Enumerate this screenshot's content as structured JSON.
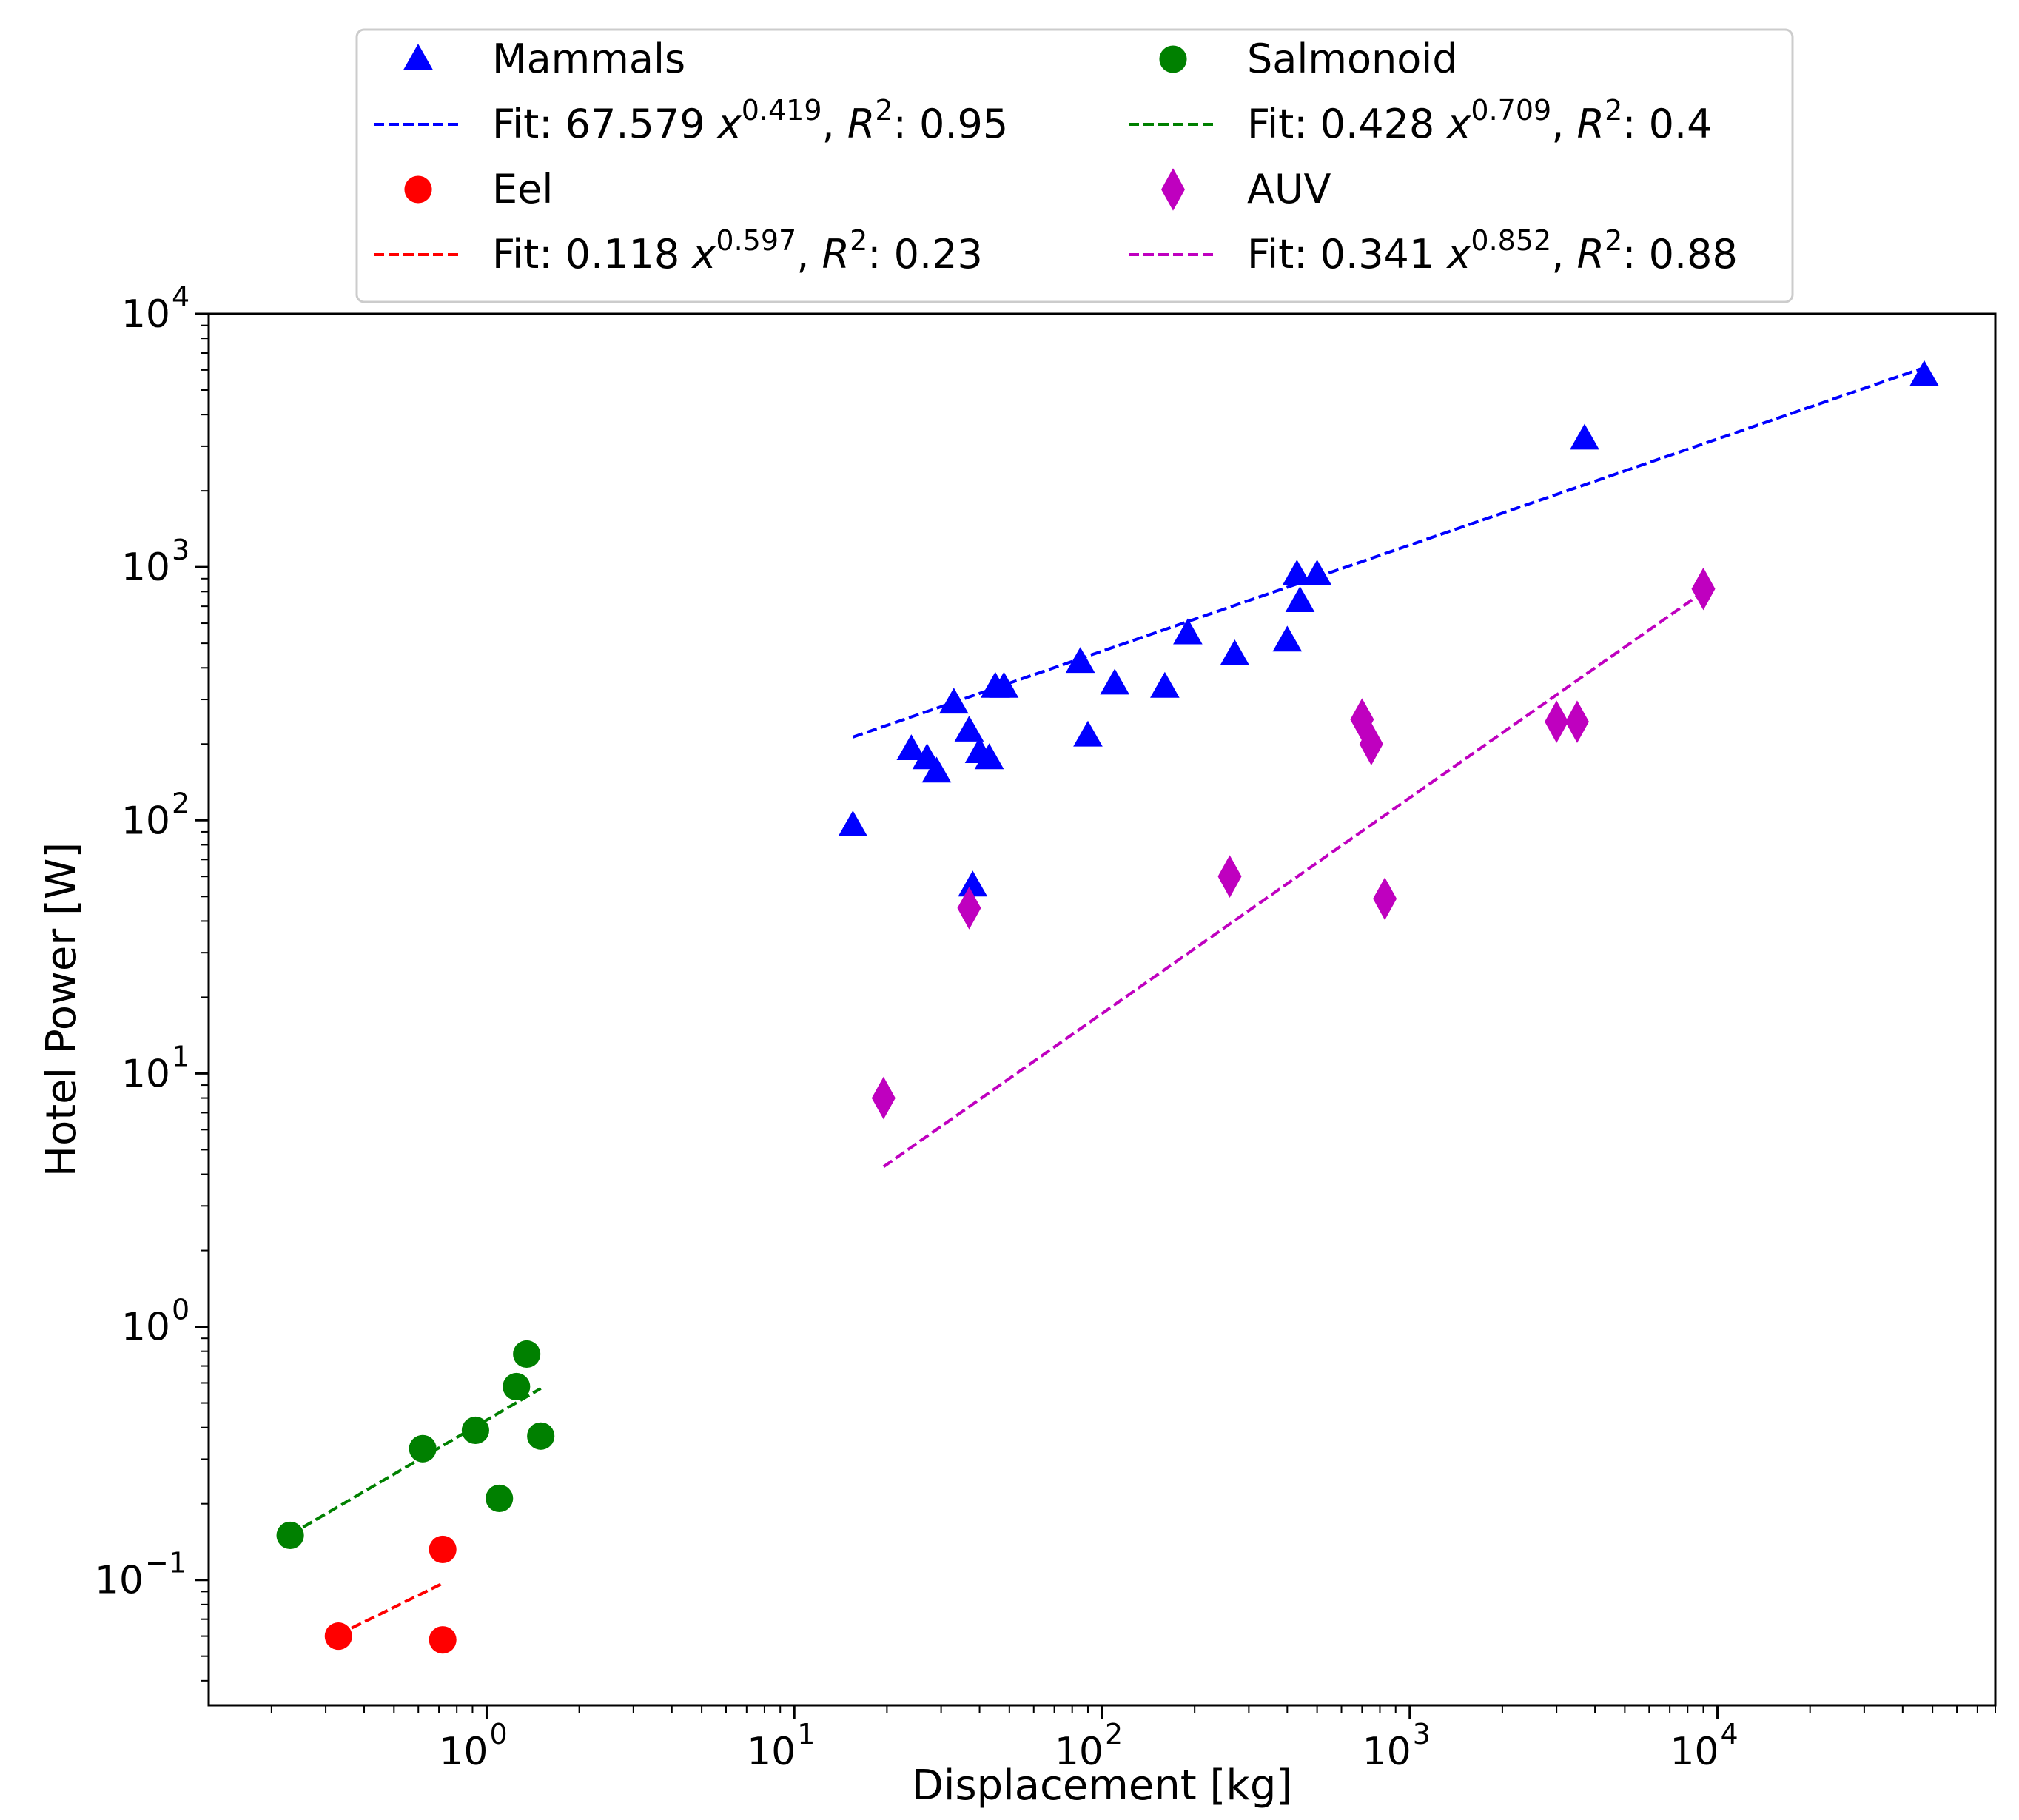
{
  "chart_data": {
    "type": "scatter",
    "title": "",
    "xlabel": "Displacement [kg]",
    "ylabel": "Hotel Power [W]",
    "xscale": "log",
    "yscale": "log",
    "xlim": [
      0.125,
      80000
    ],
    "ylim": [
      0.032,
      10000
    ],
    "grid": false,
    "legend_position": "above-plot, two columns",
    "x_ticks": [
      {
        "value": 1,
        "base": "10",
        "exp": "0"
      },
      {
        "value": 10,
        "base": "10",
        "exp": "1"
      },
      {
        "value": 100,
        "base": "10",
        "exp": "2"
      },
      {
        "value": 1000,
        "base": "10",
        "exp": "3"
      },
      {
        "value": 10000,
        "base": "10",
        "exp": "4"
      }
    ],
    "y_ticks": [
      {
        "value": 0.1,
        "base": "10",
        "exp": "−1"
      },
      {
        "value": 1,
        "base": "10",
        "exp": "0"
      },
      {
        "value": 10,
        "base": "10",
        "exp": "1"
      },
      {
        "value": 100,
        "base": "10",
        "exp": "2"
      },
      {
        "value": 1000,
        "base": "10",
        "exp": "3"
      },
      {
        "value": 10000,
        "base": "10",
        "exp": "4"
      }
    ],
    "series": [
      {
        "name": "Mammals",
        "marker": "triangle",
        "color": "#0000ff",
        "points": [
          [
            15.5,
            95
          ],
          [
            24,
            190
          ],
          [
            27,
            175
          ],
          [
            29,
            155
          ],
          [
            33,
            290
          ],
          [
            37,
            225
          ],
          [
            38,
            55
          ],
          [
            40,
            185
          ],
          [
            43,
            175
          ],
          [
            45,
            335
          ],
          [
            48,
            335
          ],
          [
            85,
            420
          ],
          [
            90,
            215
          ],
          [
            110,
            345
          ],
          [
            160,
            335
          ],
          [
            190,
            545
          ],
          [
            270,
            450
          ],
          [
            400,
            510
          ],
          [
            430,
            930
          ],
          [
            440,
            730
          ],
          [
            500,
            930
          ],
          [
            3700,
            3200
          ],
          [
            47000,
            5700
          ]
        ],
        "fit": {
          "label_prefix": "Fit: 67.579 ",
          "exponent": "0.419",
          "r2_text": ": 0.95",
          "coef": 67.579,
          "exp": 0.419,
          "x_range": [
            15.5,
            47000
          ]
        }
      },
      {
        "name": "Eel",
        "marker": "circle",
        "color": "#ff0000",
        "points": [
          [
            0.33,
            0.06
          ],
          [
            0.72,
            0.132
          ],
          [
            0.72,
            0.058
          ]
        ],
        "fit": {
          "label_prefix": "Fit: 0.118 ",
          "exponent": "0.597",
          "r2_text": ": 0.23",
          "coef": 0.118,
          "exp": 0.597,
          "x_range": [
            0.33,
            0.72
          ]
        }
      },
      {
        "name": "Salmonoid",
        "marker": "circle",
        "color": "#008000",
        "points": [
          [
            0.23,
            0.15
          ],
          [
            0.62,
            0.33
          ],
          [
            0.92,
            0.39
          ],
          [
            1.1,
            0.21
          ],
          [
            1.25,
            0.58
          ],
          [
            1.35,
            0.78
          ],
          [
            1.5,
            0.37
          ]
        ],
        "fit": {
          "label_prefix": "Fit: 0.428 ",
          "exponent": "0.709",
          "r2_text": ": 0.4",
          "coef": 0.428,
          "exp": 0.709,
          "x_range": [
            0.23,
            1.5
          ]
        }
      },
      {
        "name": "AUV",
        "marker": "diamond",
        "color": "#bf00bf",
        "points": [
          [
            19.5,
            8
          ],
          [
            37,
            45
          ],
          [
            260,
            60
          ],
          [
            700,
            250
          ],
          [
            750,
            200
          ],
          [
            830,
            49
          ],
          [
            3000,
            245
          ],
          [
            3500,
            245
          ],
          [
            9000,
            820
          ]
        ],
        "fit": {
          "label_prefix": "Fit: 0.341 ",
          "exponent": "0.852",
          "r2_text": ": 0.88",
          "coef": 0.341,
          "exp": 0.852,
          "x_range": [
            19.5,
            9000
          ]
        }
      }
    ]
  }
}
